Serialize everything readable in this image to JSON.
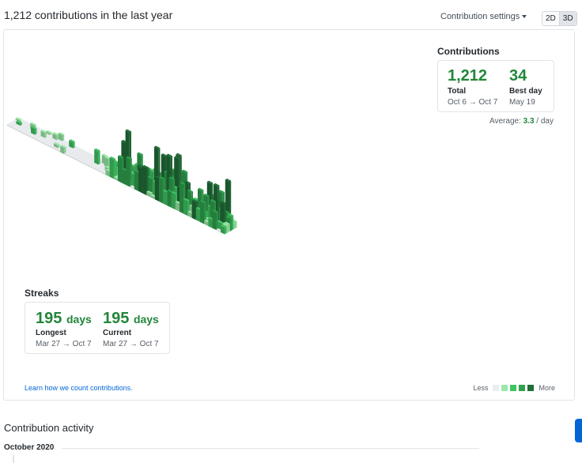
{
  "heading": "1,212 contributions in the last year",
  "settings": {
    "label": "Contribution settings"
  },
  "view_toggle": {
    "option_2d": "2D",
    "option_3d": "3D"
  },
  "contributions": {
    "title": "Contributions",
    "total_value": "1,212",
    "total_label": "Total",
    "total_range": "Oct 6 → Oct 7",
    "best_value": "34",
    "best_label": "Best day",
    "best_date": "May 19",
    "average_prefix": "Average:",
    "average_value": "3.3",
    "average_suffix": " / day"
  },
  "streaks": {
    "title": "Streaks",
    "longest_value": "195",
    "longest_unit": "days",
    "longest_label": "Longest",
    "longest_range": "Mar 27 → Oct 7",
    "current_value": "195",
    "current_unit": "days",
    "current_label": "Current",
    "current_range": "Mar 27 → Oct 7"
  },
  "footer": {
    "learn_link": "Learn how we count contributions.",
    "legend_less": "Less",
    "legend_more": "More"
  },
  "colors": {
    "level0": "#ebedf0",
    "level1": "#9be9a8",
    "level2": "#40c463",
    "level3": "#30a14e",
    "level4": "#216e39",
    "accent": "#22863a",
    "link": "#0366d6"
  },
  "activity": {
    "title": "Contribution activity",
    "month": "October 2020"
  }
}
